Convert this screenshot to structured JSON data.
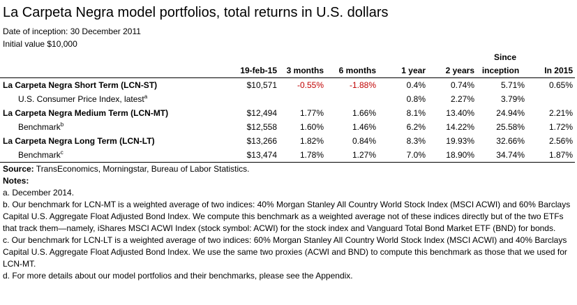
{
  "title": "La Carpeta Negra model portfolios, total returns in U.S. dollars",
  "inception": "Date of inception: 30 December 2011",
  "initial_value": "Initial value $10,000",
  "table": {
    "since_top": "Since",
    "headers": [
      "19-feb-15",
      "3 months",
      "6 months",
      "1 year",
      "2 years",
      "inception",
      "In 2015"
    ],
    "rows": [
      {
        "name": "La Carpeta Negra Short Term (LCN-ST)",
        "note": "",
        "values": [
          "$10,571",
          "-0.55%",
          "-1.88%",
          "0.4%",
          "0.74%",
          "5.71%",
          "0.65%"
        ],
        "negative": [
          false,
          true,
          true,
          false,
          false,
          false,
          false
        ]
      },
      {
        "name": "U.S. Consumer Price Index, latest",
        "note": "a",
        "values": [
          "",
          "",
          "",
          "0.8%",
          "2.27%",
          "3.79%",
          ""
        ],
        "negative": [
          false,
          false,
          false,
          false,
          false,
          false,
          false
        ]
      },
      {
        "name": "La Carpeta Negra Medium Term (LCN-MT)",
        "note": "",
        "values": [
          "$12,494",
          "1.77%",
          "1.66%",
          "8.1%",
          "13.40%",
          "24.94%",
          "2.21%"
        ],
        "negative": [
          false,
          false,
          false,
          false,
          false,
          false,
          false
        ]
      },
      {
        "name": "Benchmark",
        "note": "b",
        "values": [
          "$12,558",
          "1.60%",
          "1.46%",
          "6.2%",
          "14.22%",
          "25.58%",
          "1.72%"
        ],
        "negative": [
          false,
          false,
          false,
          false,
          false,
          false,
          false
        ]
      },
      {
        "name": "La Carpeta Negra Long Term (LCN-LT)",
        "note": "",
        "values": [
          "$13,266",
          "1.82%",
          "0.84%",
          "8.3%",
          "19.93%",
          "32.66%",
          "2.56%"
        ],
        "negative": [
          false,
          false,
          false,
          false,
          false,
          false,
          false
        ]
      },
      {
        "name": "Benchmark",
        "note": "c",
        "values": [
          "$13,474",
          "1.78%",
          "1.27%",
          "7.0%",
          "18.90%",
          "34.74%",
          "1.87%"
        ],
        "negative": [
          false,
          false,
          false,
          false,
          false,
          false,
          false
        ]
      }
    ]
  },
  "source_label": "Source:",
  "source_text": " TransEconomics, Morningstar, Bureau of Labor Statistics.",
  "notes_label": "Notes:",
  "notes": [
    "a. December 2014.",
    "b. Our benchmark for LCN-MT is a weighted average of two indices: 40% Morgan Stanley All Country World Stock Index (MSCI ACWI) and 60% Barclays Capital U.S. Aggregate Float Adjusted Bond Index. We compute this benchmark as a weighted average not of these indices directly but of the two ETFs that track them—namely, iShares MSCI ACWI Index (stock symbol: ACWI) for the stock index and Vanguard Total Bond Market ETF (BND) for bonds.",
    "c. Our benchmark for LCN-LT is a weighted average of two indices: 60% Morgan Stanley All Country World Stock Index (MSCI ACWI) and 40% Barclays Capital U.S. Aggregate Float Adjusted Bond Index. We use the same two proxies (ACWI and BND) to compute this benchmark as those that we used for LCN-MT.",
    "d. For more details about our model portfolios and their benchmarks, please see the Appendix."
  ]
}
